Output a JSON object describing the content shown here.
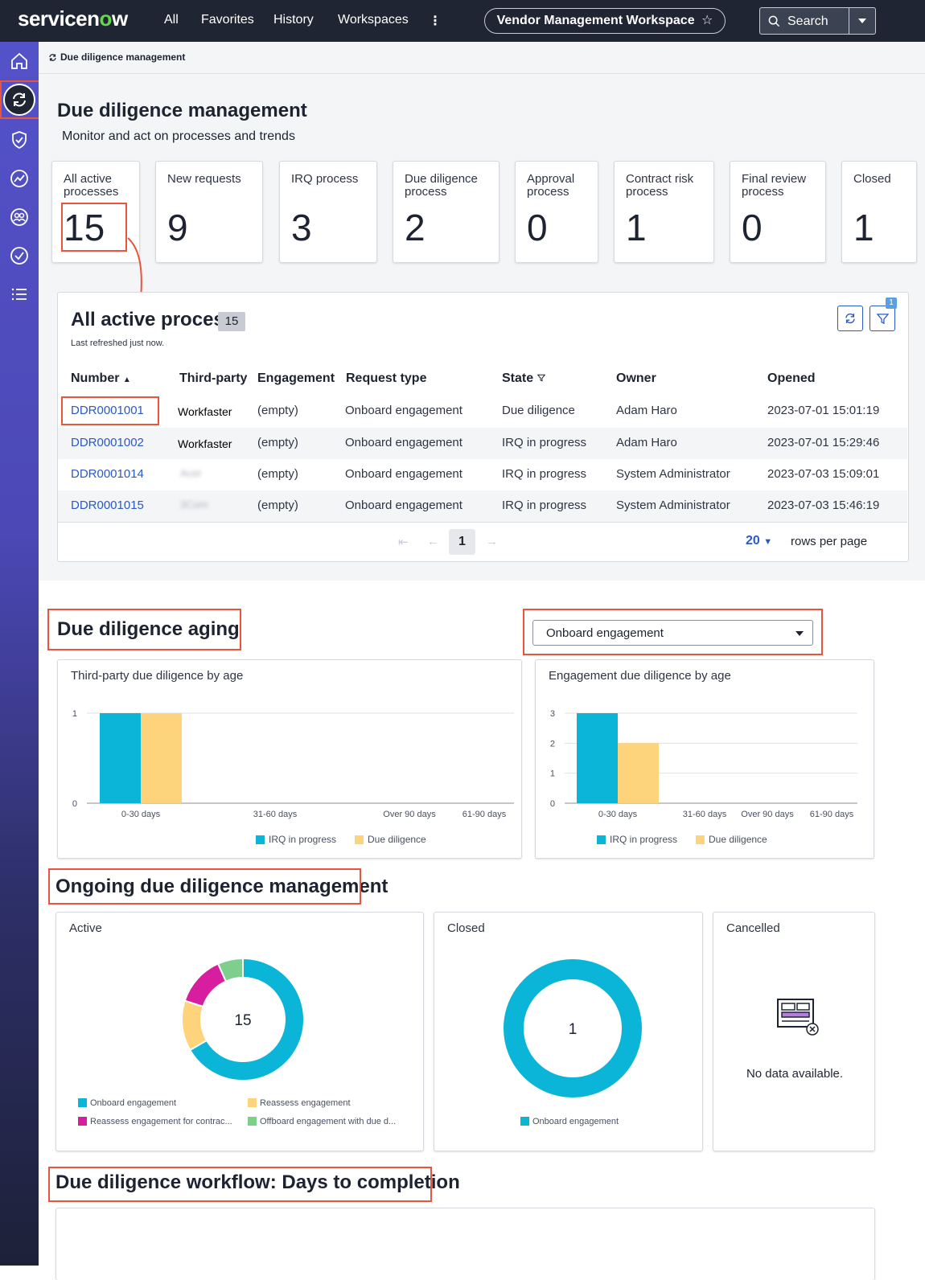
{
  "topbar": {
    "brand": "servicenow",
    "nav": [
      "All",
      "Favorites",
      "History",
      "Workspaces"
    ],
    "more_icon": "more-vertical-icon",
    "workspace": "Vendor Management Workspace",
    "search_label": "Search"
  },
  "breadcrumb": "Due diligence management",
  "header": {
    "title": "Due diligence management",
    "subtitle": "Monitor and act on processes and trends"
  },
  "kpis": [
    {
      "label": "All active processes",
      "value": "15"
    },
    {
      "label": "New requests",
      "value": "9"
    },
    {
      "label": "IRQ process",
      "value": "3"
    },
    {
      "label": "Due diligence process",
      "value": "2"
    },
    {
      "label": "Approval process",
      "value": "0"
    },
    {
      "label": "Contract risk process",
      "value": "1"
    },
    {
      "label": "Final review process",
      "value": "0"
    },
    {
      "label": "Closed",
      "value": "1"
    }
  ],
  "list": {
    "title": "All active process",
    "count": "15",
    "refreshed": "Last refreshed just now.",
    "filter_badge": "1",
    "columns": [
      "Number",
      "Third-party",
      "Engagement",
      "Request type",
      "State",
      "Owner",
      "Opened"
    ],
    "rows": [
      {
        "number": "DDR0001001",
        "third_party": "Workfaster",
        "engagement": "(empty)",
        "request_type": "Onboard engagement",
        "state": "Due diligence",
        "owner": "Adam Haro",
        "opened": "2023-07-01 15:01:19"
      },
      {
        "number": "DDR0001002",
        "third_party": "Workfaster",
        "engagement": "(empty)",
        "request_type": "Onboard engagement",
        "state": "IRQ in progress",
        "owner": "Adam Haro",
        "opened": "2023-07-01 15:29:46"
      },
      {
        "number": "DDR0001014",
        "third_party": "Acer",
        "engagement": "(empty)",
        "request_type": "Onboard engagement",
        "state": "IRQ in progress",
        "owner": "System Administrator",
        "opened": "2023-07-03 15:09:01"
      },
      {
        "number": "DDR0001015",
        "third_party": "3Com",
        "engagement": "(empty)",
        "request_type": "Onboard engagement",
        "state": "IRQ in progress",
        "owner": "System Administrator",
        "opened": "2023-07-03 15:46:19"
      }
    ],
    "pagination": {
      "page": "1",
      "rows_per_page": "20",
      "rows_label": "rows per page"
    }
  },
  "aging": {
    "title": "Due diligence aging",
    "dropdown_value": "Onboard engagement"
  },
  "colors": {
    "cyan": "#0bb5d8",
    "yellow": "#fdd47c",
    "magenta": "#d61e9f",
    "green": "#7dcf8b",
    "accent": "#2b59c3",
    "highlight": "#e8553d"
  },
  "chart_data": [
    {
      "type": "bar",
      "title": "Third-party due diligence by age",
      "categories": [
        "0-30 days",
        "31-60 days",
        "Over 90 days",
        "61-90 days"
      ],
      "series": [
        {
          "name": "IRQ in progress",
          "values": [
            1,
            0,
            0,
            0
          ]
        },
        {
          "name": "Due diligence",
          "values": [
            1,
            0,
            0,
            0
          ]
        }
      ],
      "ylim": [
        0,
        1
      ],
      "yticks": [
        "0",
        "1"
      ],
      "legend": "bottom"
    },
    {
      "type": "bar",
      "title": "Engagement due diligence by age",
      "categories": [
        "0-30 days",
        "31-60 days",
        "Over 90 days",
        "61-90 days"
      ],
      "series": [
        {
          "name": "IRQ in progress",
          "values": [
            3,
            0,
            0,
            0
          ]
        },
        {
          "name": "Due diligence",
          "values": [
            2,
            0,
            0,
            0
          ]
        }
      ],
      "ylim": [
        0,
        3
      ],
      "yticks": [
        "0",
        "1",
        "2",
        "3"
      ],
      "legend": "bottom"
    },
    {
      "type": "pie",
      "title": "Active",
      "center_label": "15",
      "labels": [
        "Onboard engagement",
        "Reassess engagement",
        "Reassess engagement for contrac...",
        "Offboard engagement with due d..."
      ],
      "values": [
        10,
        2,
        2,
        1
      ],
      "legend": "bottom"
    },
    {
      "type": "pie",
      "title": "Closed",
      "center_label": "1",
      "labels": [
        "Onboard engagement"
      ],
      "values": [
        1
      ],
      "legend": "bottom"
    }
  ],
  "ongoing": {
    "title": "Ongoing due diligence management",
    "cancelled_title": "Cancelled",
    "no_data": "No data available."
  },
  "workflow": {
    "title": "Due diligence workflow: Days to completion"
  }
}
